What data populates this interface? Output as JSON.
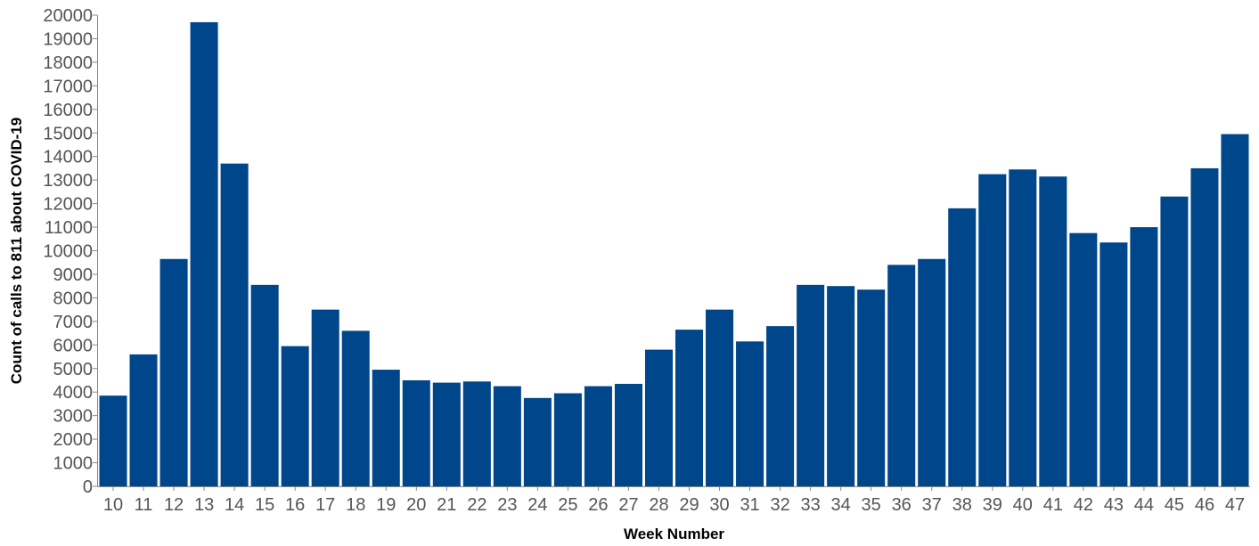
{
  "chart_data": {
    "type": "bar",
    "title": "",
    "xlabel": "Week Number",
    "ylabel": "Count of calls to 811 about COVID-19",
    "ylim": [
      0,
      20000
    ],
    "yticks": [
      0,
      1000,
      2000,
      3000,
      4000,
      5000,
      6000,
      7000,
      8000,
      9000,
      10000,
      11000,
      12000,
      13000,
      14000,
      15000,
      16000,
      17000,
      18000,
      19000,
      20000
    ],
    "grid": false,
    "bar_color": "#00468b",
    "categories": [
      "10",
      "11",
      "12",
      "13",
      "14",
      "15",
      "16",
      "17",
      "18",
      "19",
      "20",
      "21",
      "22",
      "23",
      "24",
      "25",
      "26",
      "27",
      "28",
      "29",
      "30",
      "31",
      "32",
      "33",
      "34",
      "35",
      "36",
      "37",
      "38",
      "39",
      "40",
      "41",
      "42",
      "43",
      "44",
      "45",
      "46",
      "47"
    ],
    "values": [
      3850,
      5600,
      9650,
      19700,
      13700,
      8550,
      5950,
      7500,
      6600,
      4950,
      4500,
      4400,
      4450,
      4250,
      3750,
      3950,
      4250,
      4350,
      5800,
      6650,
      7500,
      6150,
      6800,
      8550,
      8500,
      8350,
      9400,
      9650,
      11800,
      13250,
      13450,
      13150,
      10750,
      10350,
      11000,
      12300,
      13500,
      14950
    ]
  }
}
